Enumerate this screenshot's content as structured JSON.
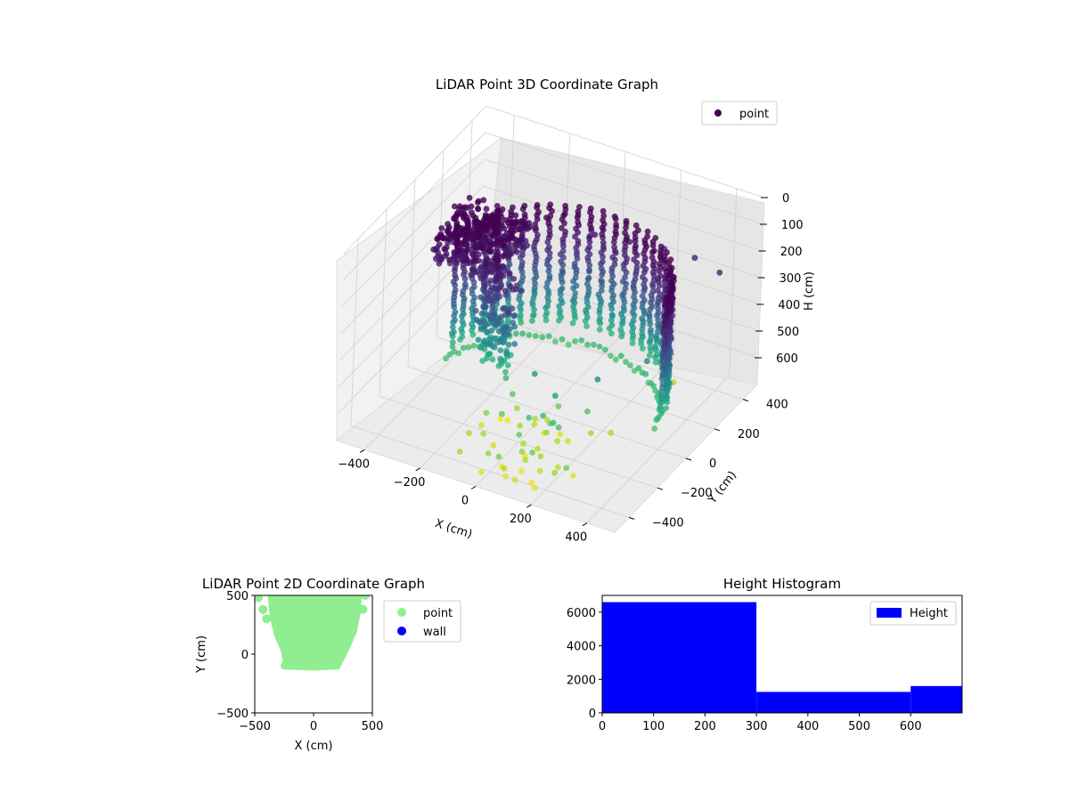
{
  "chart_data": [
    {
      "type": "scatter",
      "title": "LiDAR Point 3D Coordinate Graph",
      "xlabel": "X (cm)",
      "ylabel": "Y (cm)",
      "zlabel": "H (cm)",
      "x_ticks": [
        -400,
        -200,
        0,
        200,
        400
      ],
      "y_ticks": [
        -400,
        -200,
        0,
        200,
        400
      ],
      "z_ticks": [
        0,
        100,
        200,
        300,
        400,
        500,
        600
      ],
      "xlim": [
        -500,
        500
      ],
      "ylim": [
        -500,
        500
      ],
      "zlim": [
        0,
        700
      ],
      "z_axis_inverted": true,
      "colormap": "viridis",
      "legend": [
        "point"
      ],
      "legend_position": "top-right",
      "series": [
        {
          "name": "point",
          "description": "curved wall shell of points, dense cluster on the left, sparse outliers toward high height",
          "sample_points": [
            [
              -300,
              100,
              200
            ],
            [
              -250,
              150,
              180
            ],
            [
              -200,
              200,
              170
            ],
            [
              -150,
              250,
              160
            ],
            [
              0,
              300,
              200
            ],
            [
              100,
              350,
              220
            ],
            [
              200,
              400,
              240
            ],
            [
              300,
              420,
              250
            ],
            [
              400,
              400,
              260
            ],
            [
              -100,
              -50,
              450
            ],
            [
              0,
              -100,
              500
            ],
            [
              100,
              -150,
              520
            ],
            [
              200,
              -50,
              480
            ],
            [
              300,
              100,
              460
            ],
            [
              50,
              -300,
              600
            ],
            [
              100,
              -350,
              650
            ],
            [
              150,
              -400,
              690
            ],
            [
              300,
              300,
              650
            ]
          ]
        }
      ]
    },
    {
      "type": "scatter",
      "title": "LiDAR Point 2D Coordinate Graph",
      "xlabel": "X (cm)",
      "ylabel": "Y (cm)",
      "xlim": [
        -500,
        500
      ],
      "ylim": [
        -500,
        500
      ],
      "x_ticks": [
        -500,
        0,
        500
      ],
      "y_ticks": [
        -500,
        0,
        500
      ],
      "legend": [
        "point",
        "wall"
      ],
      "legend_position": "outside-right",
      "colors": {
        "point": "#90ee90",
        "wall": "#0000ff"
      },
      "series": [
        {
          "name": "point",
          "shape_outline": [
            [
              -360,
              500
            ],
            [
              -340,
              300
            ],
            [
              -300,
              150
            ],
            [
              -250,
              40
            ],
            [
              -230,
              -60
            ],
            [
              -250,
              -100
            ],
            [
              0,
              -110
            ],
            [
              200,
              -100
            ],
            [
              230,
              -40
            ],
            [
              280,
              60
            ],
            [
              340,
              200
            ],
            [
              370,
              350
            ],
            [
              380,
              500
            ]
          ],
          "outliers": [
            [
              -470,
              480
            ],
            [
              -430,
              380
            ],
            [
              -400,
              300
            ],
            [
              420,
              380
            ],
            [
              440,
              500
            ]
          ]
        },
        {
          "name": "wall",
          "points": []
        }
      ]
    },
    {
      "type": "bar",
      "title": "Height Histogram",
      "xlabel": "",
      "ylabel": "",
      "bins": [
        [
          0,
          300
        ],
        [
          300,
          600
        ],
        [
          600,
          700
        ]
      ],
      "values": [
        6600,
        1250,
        1600
      ],
      "xlim": [
        0,
        700
      ],
      "ylim": [
        0,
        7000
      ],
      "x_ticks": [
        0,
        100,
        200,
        300,
        400,
        500,
        600
      ],
      "y_ticks": [
        0,
        2000,
        4000,
        6000
      ],
      "bar_color": "#0000ff",
      "legend": [
        "Height"
      ],
      "legend_position": "top-right"
    }
  ]
}
